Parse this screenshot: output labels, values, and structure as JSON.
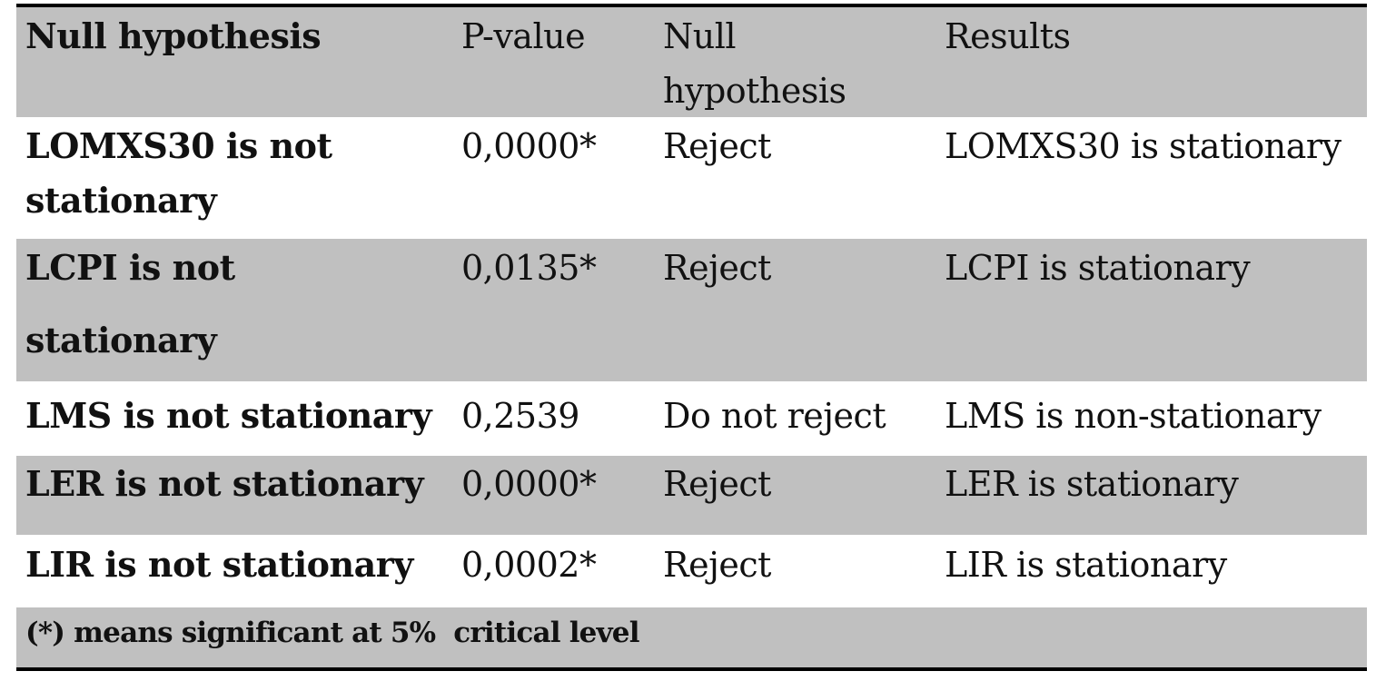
{
  "table": {
    "header": {
      "col1": "Null hypothesis",
      "col2": "P-value",
      "col3": "Null\nhypothesis",
      "col4": "Results"
    },
    "rows": [
      {
        "hypothesis": "LOMXS30 is not\nstationary",
        "p_value": "0,0000*",
        "decision": "Reject",
        "result": "LOMXS30 is stationary"
      },
      {
        "hypothesis": "LCPI is not\nstationary",
        "p_value": "0,0135*",
        "decision": "Reject",
        "result": "LCPI is stationary"
      },
      {
        "hypothesis": "LMS is not stationary",
        "p_value": "0,2539",
        "decision": "Do not reject",
        "result": "LMS is non-stationary"
      },
      {
        "hypothesis": "LER is not stationary",
        "p_value": "0,0000*",
        "decision": "Reject",
        "result": "LER is stationary"
      },
      {
        "hypothesis": "LIR is not stationary",
        "p_value": "0,0002*",
        "decision": "Reject",
        "result": "LIR is stationary"
      }
    ],
    "footnote": "(*) means significant at 5%  critical level",
    "shade_color": "#c0c0c0"
  }
}
